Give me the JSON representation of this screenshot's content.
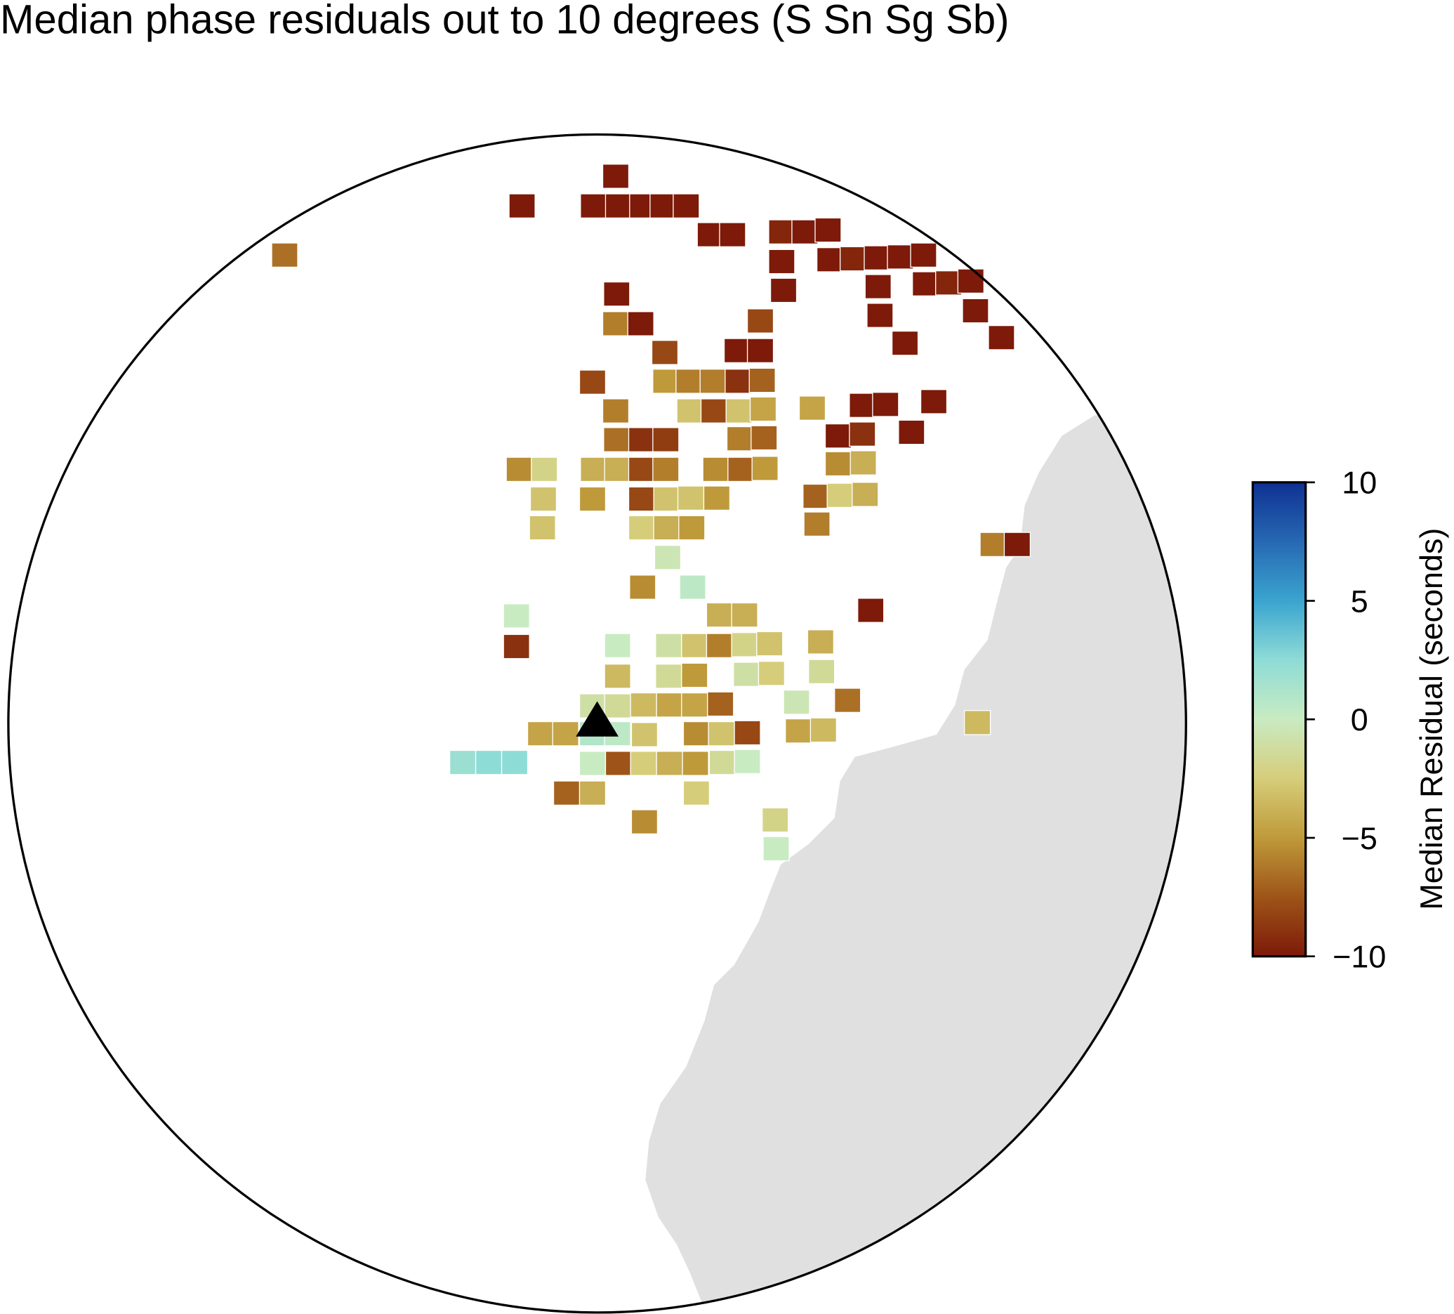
{
  "chart_data": {
    "type": "map",
    "title": "Median phase residuals out to 10 degrees (S Sn Sg Sb)",
    "colorbar_label": "Median Residual (seconds)",
    "clim": [
      -10,
      10
    ],
    "cticks": [
      {
        "value": -10,
        "label": "−10"
      },
      {
        "value": -5,
        "label": "−5"
      },
      0,
      5,
      10
    ],
    "colormap": [
      "#7d1a09",
      "#9e5418",
      "#bf9a3a",
      "#d6cd7a",
      "#c9ebc2",
      "#8edcd6",
      "#3aa4cf",
      "#2768b3",
      "#0f3192"
    ],
    "cells": [
      -10,
      -10,
      -10,
      -10,
      -10,
      -10,
      -10,
      -6.5,
      -10,
      -10,
      -9.5,
      -10,
      -10,
      -10,
      -10,
      -9.5,
      -10,
      -10,
      -10,
      -10,
      -10,
      -10,
      -10,
      -9.5,
      -10,
      -6,
      -10,
      -8,
      -10,
      -10,
      -8,
      -10,
      -10,
      -10,
      -10,
      -8,
      -5,
      -6,
      -6,
      -9,
      -7,
      -6,
      -3,
      -8,
      -3,
      -4.5,
      -4.5,
      -10,
      -10,
      -10,
      -6.5,
      -9,
      -8.5,
      -6,
      -7,
      -10,
      -9,
      -10,
      -5.5,
      -2,
      -4,
      -4,
      -8,
      -6,
      -5.5,
      -7,
      -5,
      -5.5,
      -4,
      -3,
      -5,
      -8,
      -3,
      -3,
      -5,
      -7,
      -2.5,
      -4,
      -3,
      -2.5,
      -4,
      -5,
      -6,
      -6,
      -10,
      -0.5,
      -5.5,
      0.5,
      -10,
      0,
      -4,
      -4,
      -9,
      0,
      -1,
      -3,
      -6,
      -2,
      -3,
      -4,
      -3.5,
      -1.5,
      -5,
      -1,
      -2.5,
      -1.5,
      -1,
      -1.5,
      -3.5,
      -4.5,
      -4.5,
      -7,
      -0.5,
      -6.5,
      -4.5,
      -4.5,
      1,
      0.5,
      -3,
      -5.5,
      -3,
      -8,
      -4.5,
      -3.5,
      -3.5,
      2,
      2.5,
      2.5,
      0,
      -7.5,
      -2.5,
      -4,
      -5,
      -1.5,
      0,
      -7,
      -4,
      -2.5,
      -5.5,
      -2,
      0
    ]
  }
}
